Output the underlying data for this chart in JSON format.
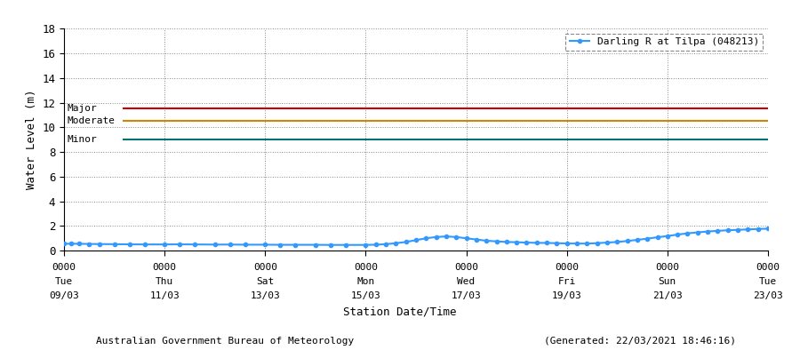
{
  "title": "",
  "xlabel": "Station Date/Time",
  "ylabel": "Water Level (m)",
  "ylim": [
    0,
    18
  ],
  "yticks": [
    0,
    2,
    4,
    6,
    8,
    10,
    12,
    14,
    16,
    18
  ],
  "legend_label": "Darling R at Tilpa (048213)",
  "flood_levels": [
    {
      "label": "Major",
      "value": 11.5,
      "color": "#cc0000"
    },
    {
      "label": "Moderate",
      "value": 10.5,
      "color": "#cc8800"
    },
    {
      "label": "Minor",
      "value": 9.0,
      "color": "#007070"
    }
  ],
  "xtick_labels": [
    [
      "0000",
      "Tue",
      "09/03"
    ],
    [
      "0000",
      "Thu",
      "11/03"
    ],
    [
      "0000",
      "Sat",
      "13/03"
    ],
    [
      "0000",
      "Mon",
      "15/03"
    ],
    [
      "0000",
      "Wed",
      "17/03"
    ],
    [
      "0000",
      "Fri",
      "19/03"
    ],
    [
      "0000",
      "Sun",
      "21/03"
    ],
    [
      "0000",
      "Tue",
      "23/03"
    ]
  ],
  "xtick_positions": [
    0,
    2,
    4,
    6,
    8,
    10,
    12,
    14
  ],
  "water_data_x": [
    0.0,
    0.15,
    0.3,
    0.5,
    0.7,
    1.0,
    1.3,
    1.6,
    2.0,
    2.3,
    2.6,
    3.0,
    3.3,
    3.6,
    4.0,
    4.3,
    4.6,
    5.0,
    5.3,
    5.6,
    6.0,
    6.2,
    6.4,
    6.6,
    6.8,
    7.0,
    7.2,
    7.4,
    7.6,
    7.8,
    8.0,
    8.2,
    8.4,
    8.6,
    8.8,
    9.0,
    9.2,
    9.4,
    9.6,
    9.8,
    10.0,
    10.2,
    10.4,
    10.6,
    10.8,
    11.0,
    11.2,
    11.4,
    11.6,
    11.8,
    12.0,
    12.2,
    12.4,
    12.6,
    12.8,
    13.0,
    13.2,
    13.4,
    13.6,
    13.8,
    14.0
  ],
  "water_data_y": [
    0.55,
    0.56,
    0.55,
    0.54,
    0.53,
    0.52,
    0.51,
    0.5,
    0.5,
    0.51,
    0.5,
    0.49,
    0.49,
    0.48,
    0.48,
    0.47,
    0.47,
    0.47,
    0.46,
    0.46,
    0.46,
    0.48,
    0.52,
    0.6,
    0.7,
    0.85,
    1.0,
    1.1,
    1.15,
    1.1,
    1.0,
    0.9,
    0.8,
    0.75,
    0.7,
    0.68,
    0.65,
    0.63,
    0.62,
    0.6,
    0.58,
    0.57,
    0.57,
    0.6,
    0.65,
    0.7,
    0.78,
    0.87,
    0.97,
    1.08,
    1.18,
    1.3,
    1.4,
    1.48,
    1.55,
    1.6,
    1.65,
    1.68,
    1.72,
    1.75,
    1.78
  ],
  "line_color": "#3399ff",
  "marker_size": 3,
  "footer_left": "Australian Government Bureau of Meteorology",
  "footer_right": "(Generated: 22/03/2021 18:46:16)",
  "bg_color": "#ffffff",
  "grid_color": "#888888",
  "font_family": "monospace"
}
